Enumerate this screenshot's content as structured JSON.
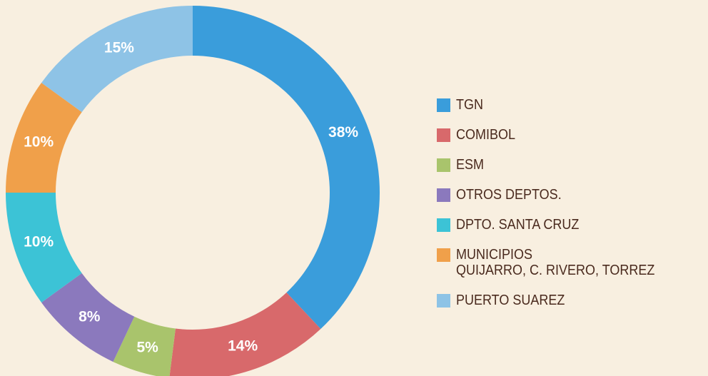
{
  "chart_data": {
    "type": "donut",
    "categories": [
      "TGN",
      "COMIBOL",
      "ESM",
      "OTROS DEPTOS.",
      "DPTO. SANTA CRUZ",
      "MUNICIPIOS\nQUIJARRO, C. RIVERO, TORREZ",
      "PUERTO SUAREZ"
    ],
    "values": [
      38,
      14,
      5,
      8,
      10,
      10,
      15
    ],
    "value_labels": [
      "38%",
      "14%",
      "5%",
      "8%",
      "10%",
      "10%",
      "15%"
    ],
    "colors": [
      "#3a9ddb",
      "#d8696b",
      "#a9c46c",
      "#8b79bd",
      "#3cc3d6",
      "#f0a04a",
      "#8ec3e6"
    ],
    "legend": "right"
  }
}
